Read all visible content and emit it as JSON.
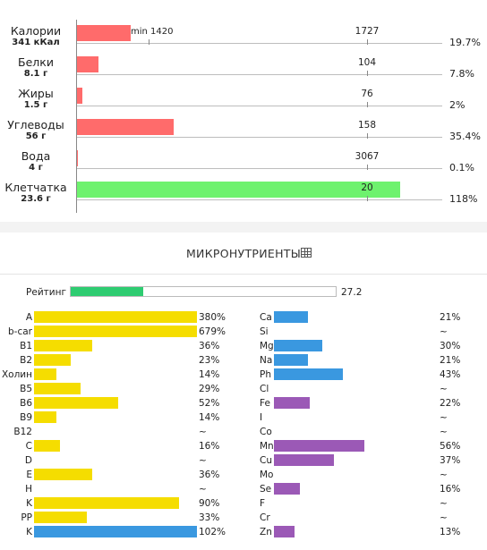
{
  "macronutrients": [
    {
      "name": "Калории",
      "value": "341 кКал",
      "norm_label": "1727",
      "min_label": "min 1420",
      "percent_label": "19.7%",
      "percent": 19.7,
      "color": "#ff6b6b"
    },
    {
      "name": "Белки",
      "value": "8.1 г",
      "norm_label": "104",
      "percent_label": "7.8%",
      "percent": 7.8,
      "color": "#ff6b6b"
    },
    {
      "name": "Жиры",
      "value": "1.5 г",
      "norm_label": "76",
      "percent_label": "2%",
      "percent": 2,
      "color": "#ff6b6b"
    },
    {
      "name": "Углеводы",
      "value": "56 г",
      "norm_label": "158",
      "percent_label": "35.4%",
      "percent": 35.4,
      "color": "#ff6b6b"
    },
    {
      "name": "Вода",
      "value": "4 г",
      "norm_label": "3067",
      "percent_label": "0.1%",
      "percent": 0.1,
      "color": "#ff6b6b"
    },
    {
      "name": "Клетчатка",
      "value": "23.6 г",
      "norm_label": "20",
      "percent_label": "118%",
      "percent": 118,
      "color": "#6ef26e"
    }
  ],
  "micro_section": {
    "title": "МИКРОНУТРИЕНТЫ",
    "icon": "table-icon"
  },
  "rating": {
    "label": "Рейтинг",
    "value_label": "27.2",
    "value": 27.2
  },
  "vitamins": [
    {
      "name": "A",
      "pct_label": "380%",
      "pct": 380,
      "color": "#f5dd00"
    },
    {
      "name": "b-car",
      "pct_label": "679%",
      "pct": 679,
      "color": "#f5dd00"
    },
    {
      "name": "B1",
      "pct_label": "36%",
      "pct": 36,
      "color": "#f5dd00"
    },
    {
      "name": "B2",
      "pct_label": "23%",
      "pct": 23,
      "color": "#f5dd00"
    },
    {
      "name": "Холин",
      "pct_label": "14%",
      "pct": 14,
      "color": "#f5dd00"
    },
    {
      "name": "B5",
      "pct_label": "29%",
      "pct": 29,
      "color": "#f5dd00"
    },
    {
      "name": "B6",
      "pct_label": "52%",
      "pct": 52,
      "color": "#f5dd00"
    },
    {
      "name": "B9",
      "pct_label": "14%",
      "pct": 14,
      "color": "#f5dd00"
    },
    {
      "name": "B12",
      "pct_label": "~",
      "pct": 0,
      "color": "#f5dd00"
    },
    {
      "name": "C",
      "pct_label": "16%",
      "pct": 16,
      "color": "#f5dd00"
    },
    {
      "name": "D",
      "pct_label": "~",
      "pct": 0,
      "color": "#f5dd00"
    },
    {
      "name": "E",
      "pct_label": "36%",
      "pct": 36,
      "color": "#f5dd00"
    },
    {
      "name": "H",
      "pct_label": "~",
      "pct": 0,
      "color": "#f5dd00"
    },
    {
      "name": "K",
      "pct_label": "90%",
      "pct": 90,
      "color": "#f5dd00"
    },
    {
      "name": "PP",
      "pct_label": "33%",
      "pct": 33,
      "color": "#f5dd00"
    },
    {
      "name": "K",
      "pct_label": "102%",
      "pct": 102,
      "color": "#3a98e0"
    }
  ],
  "minerals": [
    {
      "name": "Ca",
      "pct_label": "21%",
      "pct": 21,
      "color": "#3a98e0"
    },
    {
      "name": "Si",
      "pct_label": "~",
      "pct": 0,
      "color": "#3a98e0"
    },
    {
      "name": "Mg",
      "pct_label": "30%",
      "pct": 30,
      "color": "#3a98e0"
    },
    {
      "name": "Na",
      "pct_label": "21%",
      "pct": 21,
      "color": "#3a98e0"
    },
    {
      "name": "Ph",
      "pct_label": "43%",
      "pct": 43,
      "color": "#3a98e0"
    },
    {
      "name": "Cl",
      "pct_label": "~",
      "pct": 0,
      "color": "#3a98e0"
    },
    {
      "name": "Fe",
      "pct_label": "22%",
      "pct": 22,
      "color": "#9b59b6"
    },
    {
      "name": "I",
      "pct_label": "~",
      "pct": 0,
      "color": "#9b59b6"
    },
    {
      "name": "Co",
      "pct_label": "~",
      "pct": 0,
      "color": "#9b59b6"
    },
    {
      "name": "Mn",
      "pct_label": "56%",
      "pct": 56,
      "color": "#9b59b6"
    },
    {
      "name": "Cu",
      "pct_label": "37%",
      "pct": 37,
      "color": "#9b59b6"
    },
    {
      "name": "Mo",
      "pct_label": "~",
      "pct": 0,
      "color": "#9b59b6"
    },
    {
      "name": "Se",
      "pct_label": "16%",
      "pct": 16,
      "color": "#9b59b6"
    },
    {
      "name": "F",
      "pct_label": "~",
      "pct": 0,
      "color": "#9b59b6"
    },
    {
      "name": "Cr",
      "pct_label": "~",
      "pct": 0,
      "color": "#9b59b6"
    },
    {
      "name": "Zn",
      "pct_label": "13%",
      "pct": 13,
      "color": "#9b59b6"
    }
  ]
}
